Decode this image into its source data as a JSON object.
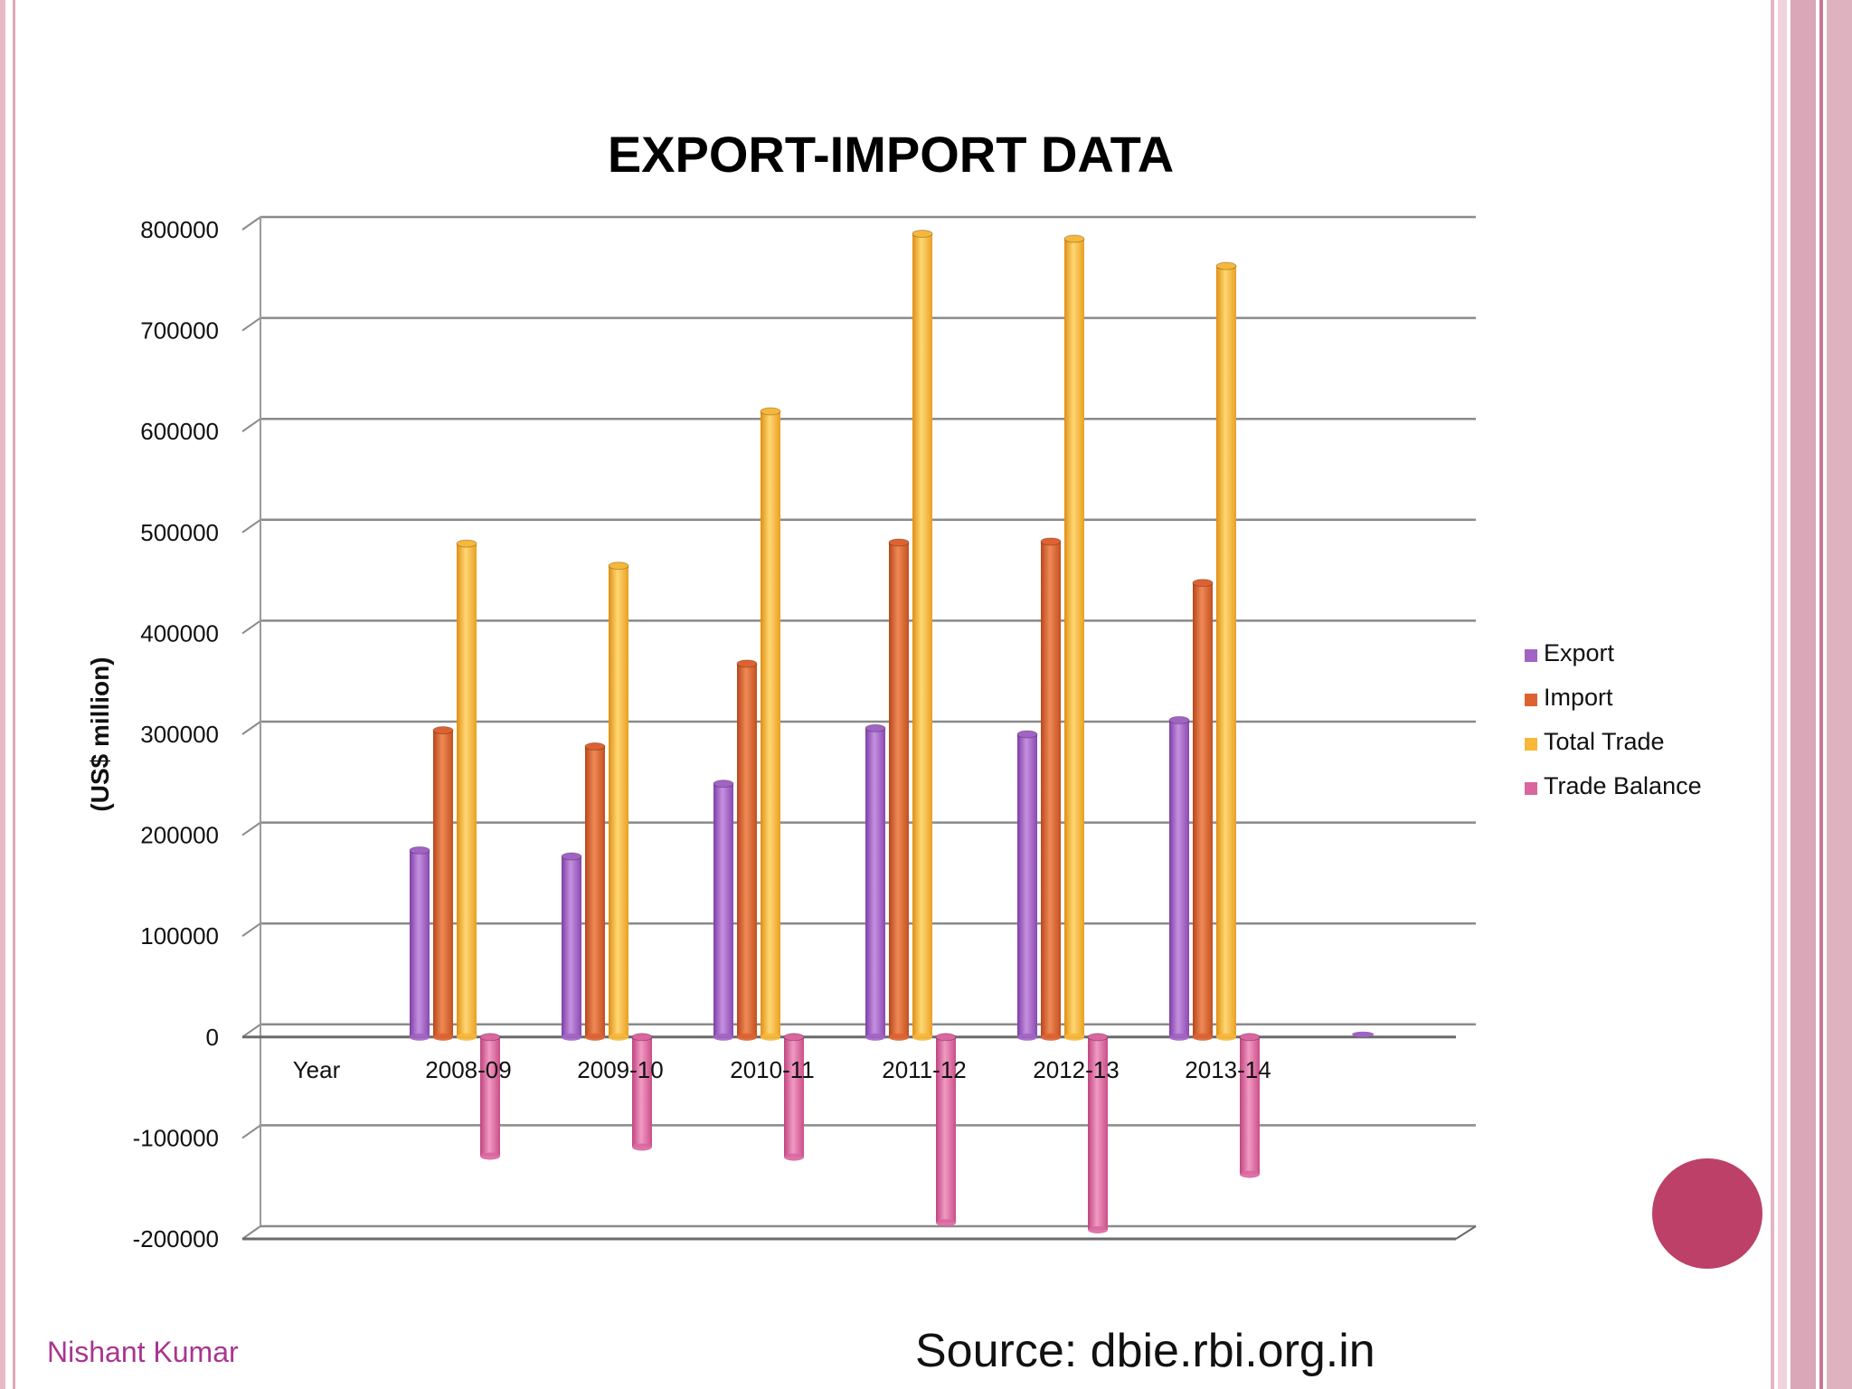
{
  "colors": {
    "export": "#a163c4",
    "import": "#de6231",
    "total_trade": "#f7b739",
    "trade_balance": "#d9669e",
    "accent_circle": "#bc4068",
    "author": "#a8368e"
  },
  "chart_data": {
    "type": "bar",
    "title": "EXPORT-IMPORT DATA",
    "ylabel": "(US$ million)",
    "xlabel": "",
    "ylim": [
      -200000,
      800000
    ],
    "yticks": [
      800000,
      700000,
      600000,
      500000,
      400000,
      300000,
      200000,
      100000,
      0,
      -100000,
      -200000
    ],
    "categories": [
      "Year",
      "2008-09",
      "2009-10",
      "2010-11",
      "2011-12",
      "2012-13",
      "2013-14",
      ""
    ],
    "series": [
      {
        "name": "Export",
        "values": [
          null,
          185000,
          179000,
          251000,
          306000,
          300000,
          314000,
          0
        ]
      },
      {
        "name": "Import",
        "values": [
          null,
          304000,
          288000,
          370000,
          490000,
          491000,
          450000,
          0
        ]
      },
      {
        "name": "Total Trade",
        "values": [
          null,
          489000,
          467000,
          620000,
          796000,
          791000,
          764000,
          0
        ]
      },
      {
        "name": "Trade Balance",
        "values": [
          null,
          -118000,
          -109000,
          -119000,
          -184000,
          -191000,
          -136000,
          0
        ]
      }
    ],
    "legend": [
      "Export",
      "Import",
      "Total Trade",
      "Trade Balance"
    ],
    "legend_position": "right",
    "grid": true
  },
  "footer": {
    "author": "Nishant Kumar",
    "source": "Source: dbie.rbi.org.in"
  }
}
